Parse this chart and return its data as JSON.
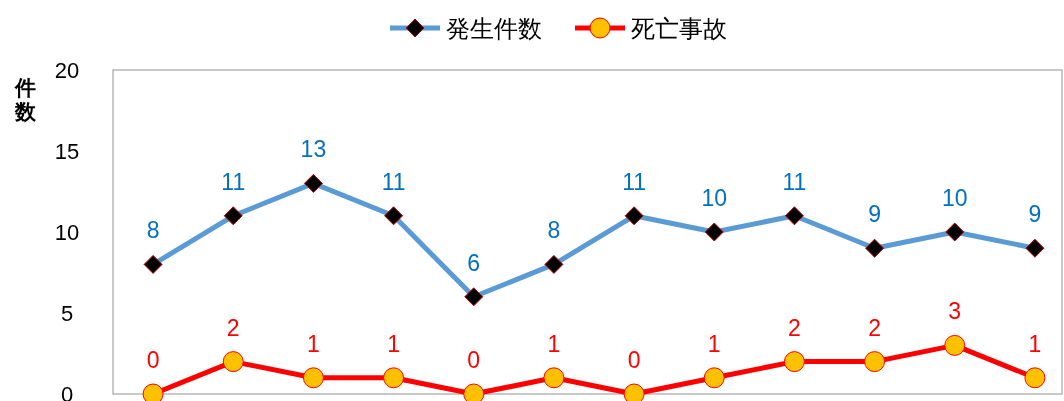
{
  "chart_data": {
    "type": "line",
    "ylabel": "件数",
    "categories": [
      null,
      null,
      null,
      null,
      null,
      null,
      null,
      null,
      null,
      null,
      null,
      null
    ],
    "series": [
      {
        "name": "発生件数",
        "color": "#5b9bd5",
        "marker": "diamond",
        "values": [
          8,
          11,
          13,
          11,
          6,
          8,
          11,
          10,
          11,
          9,
          10,
          9
        ]
      },
      {
        "name": "死亡事故",
        "color": "#ff0000",
        "marker": "circle",
        "values": [
          0,
          2,
          1,
          1,
          0,
          1,
          0,
          1,
          2,
          2,
          3,
          1
        ]
      }
    ],
    "ylim": [
      0,
      20
    ],
    "yticks": [
      0,
      5,
      10,
      15,
      20
    ],
    "data_labels": true,
    "legend": "top",
    "grid": false,
    "tick_labels": "y"
  }
}
